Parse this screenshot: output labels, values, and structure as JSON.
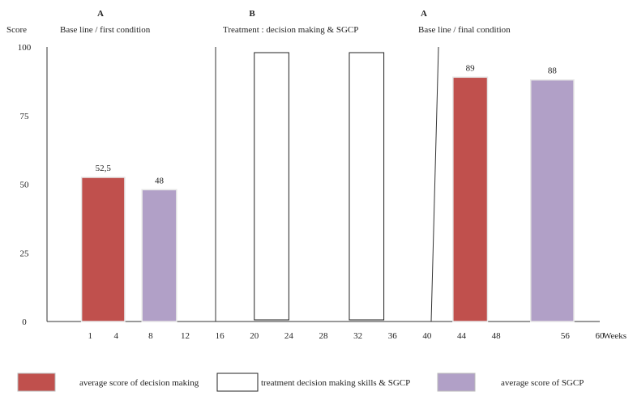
{
  "chart_data": {
    "type": "bar",
    "ylabel": "Score",
    "xlabel": "Weeks",
    "ylim": [
      0,
      100
    ],
    "yticks": [
      0,
      25,
      50,
      75,
      100
    ],
    "xlim": [
      -4,
      60
    ],
    "xticks": [
      1,
      4,
      8,
      12,
      16,
      20,
      24,
      28,
      32,
      36,
      40,
      44,
      48,
      56,
      60
    ],
    "phases": [
      {
        "code": "A",
        "label": "Base line / first condition"
      },
      {
        "code": "B",
        "label": "Treatment :  decision making & SGCP"
      },
      {
        "code": "A",
        "label": "Base line / final condition"
      }
    ],
    "bars": [
      {
        "series": "decision",
        "x_start": 0,
        "x_end": 5,
        "value": 52.5,
        "label": "52,5"
      },
      {
        "series": "sgcp",
        "x_start": 7,
        "x_end": 11,
        "value": 48,
        "label": "48"
      },
      {
        "series": "treatment",
        "x_start": 20,
        "x_end": 24,
        "value": 100,
        "label": ""
      },
      {
        "series": "treatment",
        "x_start": 31,
        "x_end": 35,
        "value": 100,
        "label": ""
      },
      {
        "series": "decision",
        "x_start": 43,
        "x_end": 47,
        "value": 89,
        "label": "89"
      },
      {
        "series": "sgcp",
        "x_start": 52,
        "x_end": 57,
        "value": 88,
        "label": "88"
      }
    ],
    "legend": [
      {
        "series": "decision",
        "label": "average score of decision making",
        "color": "#c0504d"
      },
      {
        "series": "treatment",
        "label": "treatment decision making skills & SGCP",
        "color": "#ffffff"
      },
      {
        "series": "sgcp",
        "label": "average  score of SGCP",
        "color": "#b1a0c7"
      }
    ],
    "colors": {
      "decision": "#c0504d",
      "sgcp": "#b1a0c7",
      "treatment": "#ffffff"
    }
  }
}
